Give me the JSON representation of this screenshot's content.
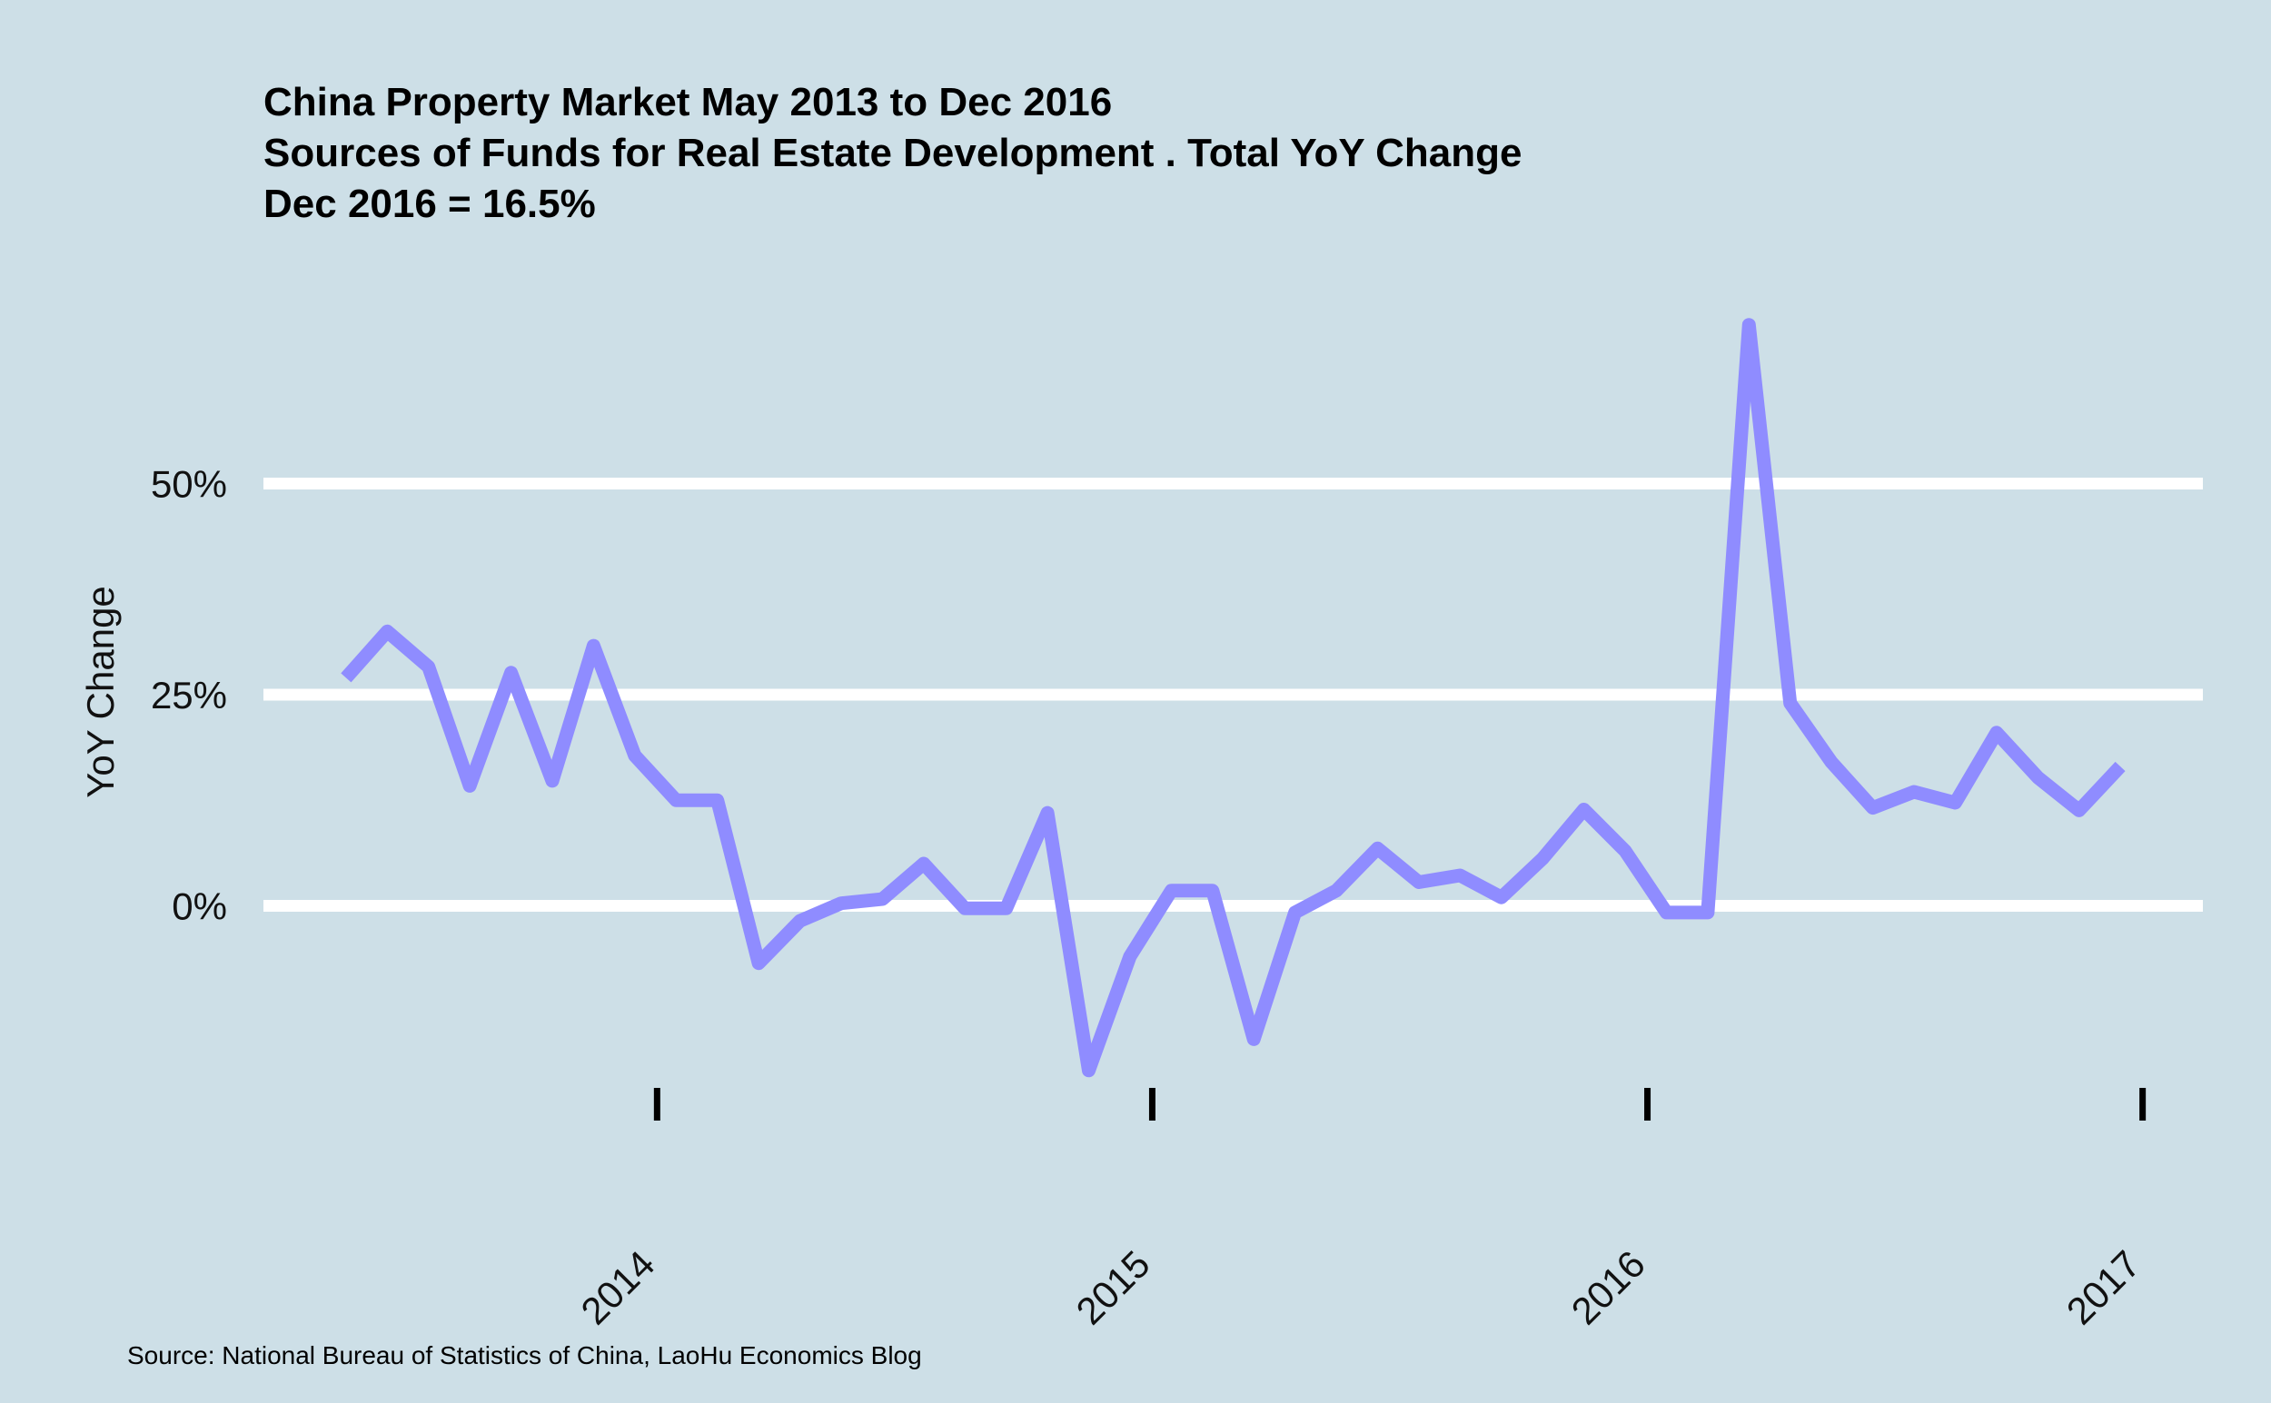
{
  "chart_data": {
    "type": "line",
    "title": "China Property Market May 2013 to Dec 2016",
    "subtitle": "Sources of Funds for Real Estate Development . Total YoY Change",
    "annotation": "Dec 2016 = 16.5%",
    "xlabel": "",
    "ylabel": "YoY Change",
    "caption": "Source: National Bureau of Statistics of China, LaoHu Economics Blog",
    "x_range": [
      "2013-03-15",
      "2017-02-15"
    ],
    "y_range": [
      -25,
      75
    ],
    "y_ticks": [
      {
        "value": 0,
        "label": "0%"
      },
      {
        "value": 25,
        "label": "25%"
      },
      {
        "value": 50,
        "label": "50%"
      }
    ],
    "x_ticks": [
      {
        "date": "2014-01-01",
        "label": "2014"
      },
      {
        "date": "2015-01-01",
        "label": "2015"
      },
      {
        "date": "2016-01-01",
        "label": "2016"
      },
      {
        "date": "2017-01-01",
        "label": "2017"
      }
    ],
    "grid": true,
    "line_color": "#8f8cff",
    "background": "#cddfe7",
    "series": [
      {
        "x": [
          "2013-05",
          "2013-06",
          "2013-07",
          "2013-08",
          "2013-09",
          "2013-10",
          "2013-11",
          "2013-12",
          "2014-01",
          "2014-02",
          "2014-03",
          "2014-04",
          "2014-05",
          "2014-06",
          "2014-07",
          "2014-08",
          "2014-09",
          "2014-10",
          "2014-11",
          "2014-12",
          "2015-01",
          "2015-02",
          "2015-03",
          "2015-04",
          "2015-05",
          "2015-06",
          "2015-07",
          "2015-08",
          "2015-09",
          "2015-10",
          "2015-11",
          "2015-12",
          "2016-01",
          "2016-02",
          "2016-03",
          "2016-04",
          "2016-05",
          "2016-06",
          "2016-07",
          "2016-08",
          "2016-09",
          "2016-10",
          "2016-11",
          "2016-12"
        ],
        "values": [
          27.0,
          32.5,
          28.3,
          14.2,
          27.6,
          14.8,
          30.8,
          17.8,
          12.5,
          12.5,
          -6.8,
          -1.8,
          0.3,
          0.8,
          5.0,
          -0.3,
          -0.3,
          11.0,
          -19.5,
          -6.0,
          1.8,
          1.8,
          -15.8,
          -0.8,
          1.8,
          6.8,
          2.8,
          3.6,
          1.0,
          5.6,
          11.4,
          6.5,
          -0.8,
          -0.8,
          68.8,
          24.0,
          17.0,
          11.6,
          13.5,
          12.2,
          20.5,
          15.2,
          11.3,
          16.5
        ]
      }
    ]
  }
}
